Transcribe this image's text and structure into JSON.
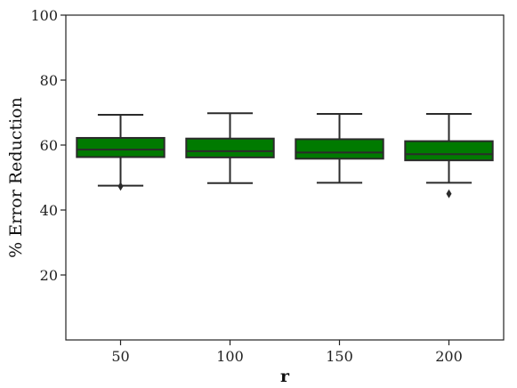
{
  "chart_data": {
    "type": "box",
    "xlabel": "r",
    "ylabel": "% Error Reduction",
    "ylim": [
      0,
      100
    ],
    "yticks": [
      20,
      40,
      60,
      80,
      100
    ],
    "categories": [
      "50",
      "100",
      "150",
      "200"
    ],
    "box_color": "#007a00",
    "edge_color": "#2b2b2b",
    "boxes": [
      {
        "whisker_low": 47.5,
        "q1": 56.3,
        "median": 58.6,
        "q3": 62.2,
        "whisker_high": 69.3,
        "outliers": [
          47.3
        ]
      },
      {
        "whisker_low": 48.3,
        "q1": 56.2,
        "median": 58.1,
        "q3": 62.0,
        "whisker_high": 69.8,
        "outliers": []
      },
      {
        "whisker_low": 48.4,
        "q1": 55.8,
        "median": 57.7,
        "q3": 61.8,
        "whisker_high": 69.6,
        "outliers": []
      },
      {
        "whisker_low": 48.4,
        "q1": 55.3,
        "median": 57.2,
        "q3": 61.2,
        "whisker_high": 69.6,
        "outliers": [
          45.0
        ]
      }
    ]
  }
}
